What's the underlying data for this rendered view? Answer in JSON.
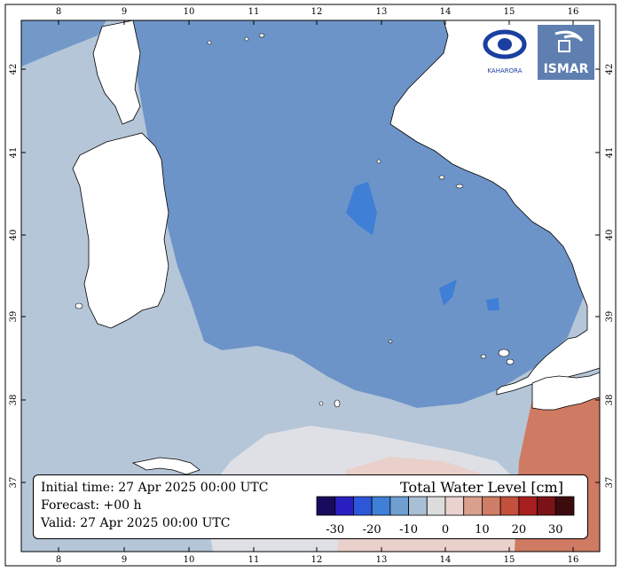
{
  "map": {
    "lon_ticks": [
      "8",
      "9",
      "10",
      "11",
      "12",
      "13",
      "14",
      "15",
      "16"
    ],
    "lat_ticks": [
      "37",
      "38",
      "39",
      "40",
      "41",
      "42"
    ]
  },
  "info": {
    "initial_time": "Initial time: 27 Apr 2025 00:00 UTC",
    "forecast": "Forecast: +00 h",
    "valid": "Valid: 27 Apr 2025 00:00 UTC"
  },
  "colorbar": {
    "title": "Total Water Level [cm]",
    "tick_labels": [
      "-30",
      "-20",
      "-10",
      "0",
      "10",
      "20",
      "30"
    ],
    "colors": [
      "#1a0a5e",
      "#2a1fc0",
      "#2d56d8",
      "#3f7fd6",
      "#6f9fd0",
      "#a9bfd5",
      "#dcdcdc",
      "#ead2ce",
      "#d9a08e",
      "#cf7d66",
      "#c2503c",
      "#a81e1e",
      "#7a1218",
      "#3d0a0e"
    ]
  },
  "logos": {
    "left_name": "KAHARORA",
    "right_name": "ISMAR"
  }
}
